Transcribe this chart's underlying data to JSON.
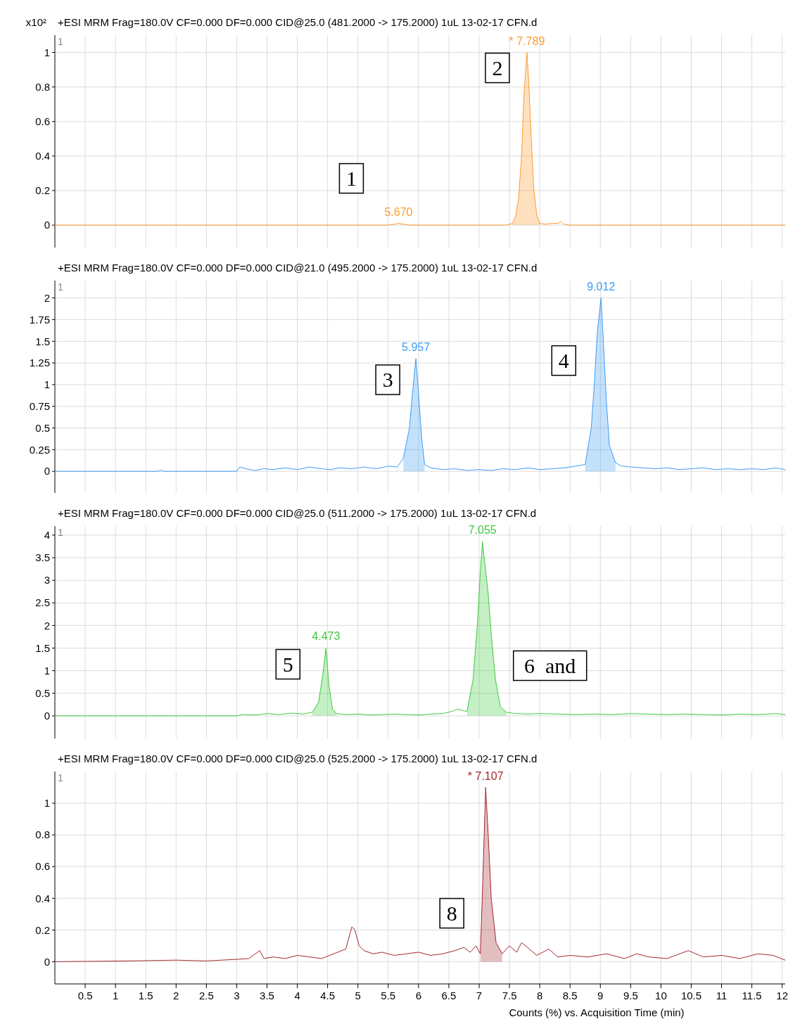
{
  "chart_data": [
    {
      "type": "line",
      "title": "+ESI MRM Frag=180.0V CF=0.000 DF=0.000 CID@25.0 (481.2000 -> 175.2000) 1uL 13-02-17 CFN.d",
      "ylabel": "x10²",
      "xlim": [
        0,
        12.05
      ],
      "ylim": [
        -0.13,
        1.1
      ],
      "xticks": [
        0.5,
        1,
        1.5,
        2,
        2.5,
        3,
        3.5,
        4,
        4.5,
        5,
        5.5,
        6,
        6.5,
        7,
        7.5,
        8,
        8.5,
        9,
        9.5,
        10,
        10.5,
        11,
        11.5,
        12
      ],
      "yticks": [
        0,
        0.2,
        0.4,
        0.6,
        0.8,
        1
      ],
      "grid": true,
      "tick_labels": "y",
      "annotations": [
        "1",
        "1",
        "2",
        {
          "text": "5.670",
          "x": 5.67,
          "y": 0.01
        },
        {
          "text": "* 7.789",
          "x": 7.789,
          "y": 1.0
        }
      ],
      "series": [
        {
          "color": "#ff9a2e",
          "x": [
            0,
            5.5,
            5.6,
            5.67,
            5.75,
            5.85,
            7.45,
            7.55,
            7.6,
            7.65,
            7.7,
            7.74,
            7.789,
            7.82,
            7.86,
            7.9,
            7.95,
            8.0,
            8.1,
            8.2,
            8.3,
            8.35,
            8.4,
            8.5,
            12.05
          ],
          "values": [
            0,
            0,
            0.005,
            0.01,
            0.005,
            0,
            0,
            0.01,
            0.05,
            0.15,
            0.4,
            0.75,
            1.0,
            0.82,
            0.5,
            0.22,
            0.06,
            0.01,
            0.005,
            0.01,
            0.01,
            0.02,
            0.005,
            0,
            0
          ]
        },
        {
          "type": "area",
          "color": "#ff9a2e",
          "x": [
            7.55,
            7.6,
            7.65,
            7.7,
            7.74,
            7.789,
            7.82,
            7.86,
            7.9,
            7.95,
            8.0
          ],
          "values": [
            0.01,
            0.05,
            0.15,
            0.4,
            0.75,
            1.0,
            0.82,
            0.5,
            0.22,
            0.06,
            0.01
          ]
        }
      ]
    },
    {
      "type": "line",
      "title": "+ESI MRM Frag=180.0V CF=0.000 DF=0.000 CID@21.0 (495.2000 -> 175.2000) 1uL 13-02-17 CFN.d",
      "xlim": [
        0,
        12.05
      ],
      "ylim": [
        -0.25,
        2.2
      ],
      "xticks": [
        0.5,
        1,
        1.5,
        2,
        2.5,
        3,
        3.5,
        4,
        4.5,
        5,
        5.5,
        6,
        6.5,
        7,
        7.5,
        8,
        8.5,
        9,
        9.5,
        10,
        10.5,
        11,
        11.5,
        12
      ],
      "yticks": [
        0,
        0.25,
        0.5,
        0.75,
        1,
        1.25,
        1.5,
        1.75,
        2
      ],
      "grid": true,
      "tick_labels": "y",
      "annotations": [
        "1",
        "3",
        "4",
        {
          "text": "5.957",
          "x": 5.957,
          "y": 1.3
        },
        {
          "text": "9.012",
          "x": 9.012,
          "y": 2.0
        }
      ],
      "series": [
        {
          "color": "#3d9cf5",
          "x": [
            0,
            1.7,
            1.75,
            1.8,
            3.0,
            3.05,
            3.15,
            3.3,
            3.45,
            3.6,
            3.8,
            4.0,
            4.2,
            4.4,
            4.55,
            4.7,
            4.9,
            5.1,
            5.3,
            5.5,
            5.65,
            5.75,
            5.85,
            5.9,
            5.957,
            6.0,
            6.05,
            6.1,
            6.2,
            6.4,
            6.6,
            6.8,
            7.0,
            7.2,
            7.4,
            7.6,
            7.8,
            8.0,
            8.2,
            8.4,
            8.6,
            8.75,
            8.85,
            8.9,
            8.95,
            9.012,
            9.05,
            9.1,
            9.15,
            9.25,
            9.35,
            9.5,
            9.7,
            9.9,
            10.1,
            10.3,
            10.5,
            10.7,
            10.9,
            11.1,
            11.3,
            11.5,
            11.7,
            11.9,
            12.05
          ],
          "values": [
            0,
            0,
            0.01,
            0,
            0,
            0.05,
            0.03,
            0.01,
            0.03,
            0.02,
            0.04,
            0.02,
            0.05,
            0.03,
            0.02,
            0.04,
            0.03,
            0.05,
            0.03,
            0.06,
            0.05,
            0.15,
            0.5,
            0.9,
            1.3,
            0.9,
            0.4,
            0.08,
            0.04,
            0.02,
            0.03,
            0.01,
            0.02,
            0.01,
            0.03,
            0.02,
            0.04,
            0.02,
            0.03,
            0.04,
            0.06,
            0.08,
            0.5,
            1.0,
            1.6,
            2.0,
            1.5,
            0.8,
            0.3,
            0.1,
            0.06,
            0.05,
            0.04,
            0.03,
            0.04,
            0.02,
            0.03,
            0.04,
            0.02,
            0.03,
            0.02,
            0.03,
            0.02,
            0.04,
            0.02
          ]
        },
        {
          "type": "area",
          "color": "#3d9cf5",
          "x": [
            5.75,
            5.85,
            5.9,
            5.957,
            6.0,
            6.05,
            6.1
          ],
          "values": [
            0.15,
            0.5,
            0.9,
            1.3,
            0.9,
            0.4,
            0.08
          ]
        },
        {
          "type": "area",
          "color": "#3d9cf5",
          "x": [
            8.75,
            8.85,
            8.9,
            8.95,
            9.012,
            9.05,
            9.1,
            9.15,
            9.25
          ],
          "values": [
            0.08,
            0.5,
            1.0,
            1.6,
            2.0,
            1.5,
            0.8,
            0.3,
            0.1
          ]
        }
      ]
    },
    {
      "type": "line",
      "title": "+ESI MRM Frag=180.0V CF=0.000 DF=0.000 CID@25.0 (511.2000 -> 175.2000) 1uL 13-02-17 CFN.d",
      "xlim": [
        0,
        12.05
      ],
      "ylim": [
        -0.5,
        4.2
      ],
      "xticks": [
        0.5,
        1,
        1.5,
        2,
        2.5,
        3,
        3.5,
        4,
        4.5,
        5,
        5.5,
        6,
        6.5,
        7,
        7.5,
        8,
        8.5,
        9,
        9.5,
        10,
        10.5,
        11,
        11.5,
        12
      ],
      "yticks": [
        0,
        0.5,
        1,
        1.5,
        2,
        2.5,
        3,
        3.5,
        4
      ],
      "grid": true,
      "tick_labels": "y",
      "annotations": [
        "1",
        "5",
        "6  and",
        {
          "text": "4.473",
          "x": 4.473,
          "y": 1.5
        },
        {
          "text": "7.055",
          "x": 7.055,
          "y": 3.85
        }
      ],
      "series": [
        {
          "color": "#3ec93e",
          "x": [
            0,
            3.0,
            3.1,
            3.3,
            3.5,
            3.7,
            3.9,
            4.1,
            4.25,
            4.35,
            4.42,
            4.473,
            4.52,
            4.58,
            4.65,
            4.8,
            5.0,
            5.2,
            5.4,
            5.6,
            5.8,
            6.0,
            6.2,
            6.4,
            6.55,
            6.65,
            6.72,
            6.8,
            6.9,
            6.97,
            7.02,
            7.055,
            7.1,
            7.15,
            7.2,
            7.27,
            7.35,
            7.45,
            7.6,
            7.8,
            8.0,
            8.3,
            8.6,
            8.9,
            9.2,
            9.5,
            9.8,
            10.1,
            10.4,
            10.7,
            11.0,
            11.3,
            11.6,
            11.9,
            12.05
          ],
          "values": [
            0,
            0,
            0.03,
            0.02,
            0.05,
            0.03,
            0.06,
            0.04,
            0.08,
            0.3,
            0.9,
            1.5,
            0.7,
            0.15,
            0.05,
            0.03,
            0.04,
            0.02,
            0.03,
            0.04,
            0.03,
            0.02,
            0.04,
            0.05,
            0.1,
            0.15,
            0.12,
            0.1,
            0.8,
            2.0,
            3.2,
            3.85,
            3.3,
            2.7,
            1.8,
            0.8,
            0.2,
            0.08,
            0.05,
            0.04,
            0.05,
            0.04,
            0.03,
            0.04,
            0.03,
            0.05,
            0.04,
            0.03,
            0.04,
            0.03,
            0.02,
            0.04,
            0.03,
            0.05,
            0.03
          ]
        },
        {
          "type": "area",
          "color": "#3ec93e",
          "x": [
            4.25,
            4.35,
            4.42,
            4.473,
            4.52,
            4.58,
            4.65
          ],
          "values": [
            0.08,
            0.3,
            0.9,
            1.5,
            0.7,
            0.15,
            0.05
          ]
        },
        {
          "type": "area",
          "color": "#3ec93e",
          "x": [
            6.8,
            6.9,
            6.97,
            7.02,
            7.055,
            7.1,
            7.15,
            7.2,
            7.27,
            7.35,
            7.45
          ],
          "values": [
            0.1,
            0.8,
            2.0,
            3.2,
            3.85,
            3.3,
            2.7,
            1.8,
            0.8,
            0.2,
            0.08
          ]
        }
      ]
    },
    {
      "type": "line",
      "title": "+ESI MRM Frag=180.0V CF=0.000 DF=0.000 CID@25.0 (525.2000 -> 175.2000) 1uL 13-02-17 CFN.d",
      "xlabel": "Counts (%) vs. Acquisition Time (min)",
      "xlim": [
        0,
        12.05
      ],
      "ylim": [
        -0.14,
        1.2
      ],
      "xticks": [
        0.5,
        1,
        1.5,
        2,
        2.5,
        3,
        3.5,
        4,
        4.5,
        5,
        5.5,
        6,
        6.5,
        7,
        7.5,
        8,
        8.5,
        9,
        9.5,
        10,
        10.5,
        11,
        11.5,
        12
      ],
      "yticks": [
        0,
        0.2,
        0.4,
        0.6,
        0.8,
        1
      ],
      "grid": true,
      "annotations": [
        "1",
        "8",
        {
          "text": "* 7.107",
          "x": 7.107,
          "y": 1.1
        }
      ],
      "series": [
        {
          "color": "#a3282e",
          "x": [
            0,
            1.2,
            2.0,
            2.5,
            3.0,
            3.2,
            3.38,
            3.45,
            3.6,
            3.8,
            4.0,
            4.2,
            4.4,
            4.6,
            4.8,
            4.9,
            4.95,
            5.02,
            5.1,
            5.25,
            5.4,
            5.6,
            5.8,
            6.0,
            6.2,
            6.4,
            6.6,
            6.75,
            6.85,
            6.95,
            7.02,
            7.06,
            7.107,
            7.15,
            7.2,
            7.28,
            7.38,
            7.5,
            7.62,
            7.7,
            7.8,
            7.95,
            8.15,
            8.3,
            8.5,
            8.8,
            9.1,
            9.4,
            9.6,
            9.8,
            10.1,
            10.45,
            10.7,
            11.0,
            11.3,
            11.6,
            11.85,
            12.05
          ],
          "values": [
            0,
            0.005,
            0.01,
            0.005,
            0.015,
            0.02,
            0.07,
            0.02,
            0.03,
            0.02,
            0.04,
            0.03,
            0.02,
            0.05,
            0.08,
            0.22,
            0.2,
            0.1,
            0.07,
            0.05,
            0.06,
            0.04,
            0.05,
            0.06,
            0.04,
            0.05,
            0.07,
            0.09,
            0.06,
            0.1,
            0.05,
            0.5,
            1.1,
            0.8,
            0.4,
            0.12,
            0.05,
            0.1,
            0.06,
            0.12,
            0.09,
            0.04,
            0.08,
            0.03,
            0.04,
            0.03,
            0.05,
            0.02,
            0.05,
            0.03,
            0.02,
            0.07,
            0.03,
            0.04,
            0.02,
            0.05,
            0.04,
            0.01
          ]
        },
        {
          "type": "area",
          "color": "#a3282e",
          "x": [
            7.02,
            7.06,
            7.107,
            7.15,
            7.2,
            7.28,
            7.38
          ],
          "values": [
            0.05,
            0.5,
            1.1,
            0.8,
            0.4,
            0.12,
            0.05
          ]
        }
      ]
    }
  ]
}
